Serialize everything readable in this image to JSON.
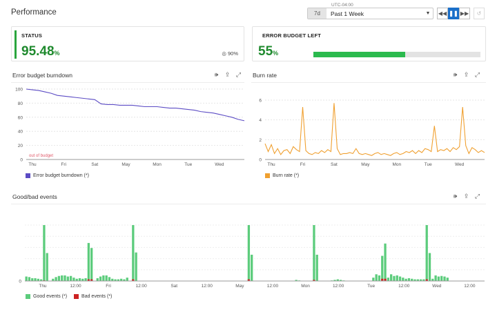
{
  "header": {
    "title": "Performance",
    "timezone": "UTC-04:00",
    "timeframe_short": "7d",
    "timeframe_label": "Past 1 Week"
  },
  "status": {
    "label": "STATUS",
    "value": "95.48",
    "unit": "%",
    "target": "90%",
    "color": "#1f8a2e"
  },
  "error_budget": {
    "label": "ERROR BUDGET LEFT",
    "value": "55",
    "unit": "%",
    "fraction": 0.55,
    "color": "#2bba4e"
  },
  "burndown": {
    "title": "Error budget burndown",
    "legend": "Error budget burndown (*)"
  },
  "burn_rate": {
    "title": "Burn rate",
    "legend": "Burn rate (*)"
  },
  "events": {
    "title": "Good/bad events",
    "legend_good": "Good events (*)",
    "legend_bad": "Bad events (*)"
  },
  "chart_data": [
    {
      "type": "line",
      "name": "burndown",
      "color": "#5b4bc4",
      "ylim": [
        0,
        100
      ],
      "yticks": [
        0,
        20,
        40,
        60,
        80,
        100
      ],
      "annotation": "out of budget",
      "xticks": [
        "Thu",
        "Fri",
        "Sat",
        "May",
        "Mon",
        "Tue",
        "Wed"
      ],
      "xtick_positions": [
        0.5,
        1.5,
        2.5,
        3.5,
        4.5,
        5.5,
        6.5
      ],
      "xlim": [
        0.3,
        7.3
      ],
      "series": [
        {
          "name": "Error budget burndown (*)",
          "x": [
            0.3,
            0.5,
            0.7,
            0.9,
            1.1,
            1.3,
            1.5,
            1.7,
            1.9,
            2.1,
            2.3,
            2.5,
            2.7,
            2.9,
            3.1,
            3.3,
            3.5,
            3.7,
            3.9,
            4.1,
            4.3,
            4.5,
            4.7,
            4.9,
            5.1,
            5.3,
            5.5,
            5.7,
            5.9,
            6.1,
            6.3,
            6.5,
            6.7,
            6.9,
            7.1,
            7.3
          ],
          "y": [
            100,
            99,
            98,
            96,
            94,
            91,
            90,
            89,
            88,
            87,
            86,
            85,
            79,
            78,
            78,
            77,
            77,
            77,
            76,
            75,
            75,
            75,
            74,
            73,
            73,
            72,
            71,
            70,
            68,
            67,
            66,
            64,
            62,
            60,
            57,
            55
          ]
        }
      ]
    },
    {
      "type": "line",
      "name": "burn_rate",
      "color": "#f0a030",
      "ylim": [
        0,
        6
      ],
      "yticks": [
        0,
        2,
        4,
        6
      ],
      "xticks": [
        "Thu",
        "Fri",
        "Sat",
        "May",
        "Mon",
        "Tue",
        "Wed"
      ],
      "xtick_positions": [
        0.5,
        1.5,
        2.5,
        3.5,
        4.5,
        5.5,
        6.5
      ],
      "xlim": [
        0.3,
        7.3
      ],
      "series": [
        {
          "name": "Burn rate (*)",
          "x": [
            0.3,
            0.4,
            0.5,
            0.6,
            0.7,
            0.8,
            0.9,
            1.0,
            1.1,
            1.2,
            1.3,
            1.4,
            1.5,
            1.6,
            1.7,
            1.8,
            1.9,
            2.0,
            2.1,
            2.2,
            2.3,
            2.4,
            2.5,
            2.6,
            2.7,
            2.8,
            2.9,
            3.0,
            3.1,
            3.2,
            3.3,
            3.4,
            3.5,
            3.6,
            3.7,
            3.8,
            3.9,
            4.0,
            4.1,
            4.2,
            4.3,
            4.4,
            4.5,
            4.6,
            4.7,
            4.8,
            4.9,
            5.0,
            5.1,
            5.2,
            5.3,
            5.4,
            5.5,
            5.6,
            5.7,
            5.8,
            5.9,
            6.0,
            6.1,
            6.2,
            6.3,
            6.4,
            6.5,
            6.6,
            6.7,
            6.8,
            6.9,
            7.0,
            7.1,
            7.2,
            7.3
          ],
          "y": [
            1.6,
            0.8,
            1.5,
            0.6,
            1.1,
            0.5,
            0.9,
            1.0,
            0.6,
            1.3,
            1.0,
            0.8,
            5.3,
            0.9,
            0.6,
            0.5,
            0.7,
            0.6,
            0.9,
            0.7,
            1.0,
            0.8,
            5.7,
            1.1,
            0.5,
            0.6,
            0.6,
            0.7,
            0.6,
            1.1,
            0.6,
            0.5,
            0.6,
            0.5,
            0.4,
            0.6,
            0.7,
            0.5,
            0.6,
            0.5,
            0.4,
            0.6,
            0.7,
            0.5,
            0.6,
            0.8,
            0.7,
            0.9,
            0.6,
            0.9,
            0.7,
            1.1,
            1.0,
            0.8,
            3.4,
            0.8,
            1.0,
            0.9,
            1.1,
            0.8,
            1.2,
            1.0,
            1.3,
            5.3,
            1.4,
            0.6,
            1.2,
            1.0,
            0.7,
            0.9,
            0.7
          ]
        }
      ]
    },
    {
      "type": "bar",
      "name": "events",
      "xticks": [
        "Thu",
        "12:00",
        "Fri",
        "12:00",
        "Sat",
        "12:00",
        "May",
        "12:00",
        "Mon",
        "12:00",
        "Tue",
        "12:00",
        "Wed",
        "12:00"
      ],
      "xtick_positions": [
        6,
        17,
        28,
        39,
        50,
        61,
        72,
        83,
        94,
        105,
        116,
        127,
        138,
        149
      ],
      "xlim": [
        0,
        154
      ],
      "ylim": [
        0,
        100
      ],
      "ytick_count": 5,
      "series": [
        {
          "name": "Good events (*)",
          "color": "#5ccc7c",
          "values": [
            8,
            7,
            5,
            5,
            4,
            3,
            100,
            50,
            0,
            4,
            7,
            9,
            10,
            10,
            8,
            9,
            6,
            4,
            5,
            4,
            5,
            68,
            59,
            0,
            5,
            8,
            10,
            10,
            7,
            4,
            3,
            3,
            4,
            3,
            6,
            0,
            100,
            51,
            0,
            0,
            0,
            0,
            0,
            0,
            0,
            0,
            0,
            0,
            0,
            0,
            0,
            0,
            0,
            0,
            0,
            0,
            0,
            0,
            0,
            0,
            0,
            0,
            0,
            0,
            0,
            0,
            0,
            0,
            0,
            0,
            0,
            0,
            0,
            0,
            0,
            100,
            47,
            0,
            0,
            0,
            0,
            0,
            0,
            0,
            0,
            0,
            0,
            0,
            0,
            0,
            0,
            2,
            1,
            0,
            0,
            0,
            0,
            100,
            47,
            0,
            0,
            0,
            0,
            1,
            2,
            3,
            2,
            1,
            0,
            0,
            0,
            0,
            0,
            0,
            0,
            0,
            0,
            6,
            12,
            10,
            45,
            67,
            6,
            12,
            9,
            10,
            8,
            6,
            4,
            5,
            4,
            3,
            3,
            3,
            3,
            100,
            50,
            4,
            10,
            8,
            9,
            8,
            6,
            0,
            0,
            0,
            0,
            0,
            0,
            0,
            0,
            0,
            0,
            0,
            0
          ],
          "note": "approximate heights"
        },
        {
          "name": "Bad events (*)",
          "color": "#cc2222",
          "values": [
            0,
            0,
            0,
            0,
            0,
            0,
            1,
            0,
            0,
            0,
            0,
            0,
            0,
            0,
            0,
            0,
            0,
            0,
            0,
            0,
            0,
            3,
            3,
            0,
            0,
            0,
            0,
            0,
            0,
            0,
            0,
            0,
            0,
            0,
            0,
            0,
            3,
            0,
            0,
            0,
            0,
            0,
            0,
            0,
            0,
            0,
            0,
            0,
            0,
            0,
            0,
            0,
            0,
            0,
            0,
            0,
            0,
            0,
            0,
            0,
            0,
            0,
            0,
            0,
            0,
            0,
            0,
            0,
            0,
            0,
            0,
            0,
            0,
            0,
            0,
            3,
            0,
            0,
            0,
            0,
            0,
            0,
            0,
            0,
            0,
            0,
            0,
            0,
            0,
            0,
            0,
            0,
            0,
            0,
            0,
            0,
            0,
            2,
            0,
            0,
            0,
            0,
            0,
            0,
            0,
            0,
            0,
            0,
            0,
            0,
            0,
            0,
            0,
            0,
            0,
            0,
            0,
            0,
            0,
            0,
            4,
            4,
            0,
            0,
            0,
            0,
            0,
            0,
            0,
            0,
            0,
            0,
            0,
            0,
            0,
            3,
            0,
            0,
            0,
            0,
            0,
            0,
            0,
            0,
            0,
            0,
            0,
            0,
            0,
            0,
            0,
            0,
            0,
            0,
            0
          ]
        }
      ]
    }
  ]
}
